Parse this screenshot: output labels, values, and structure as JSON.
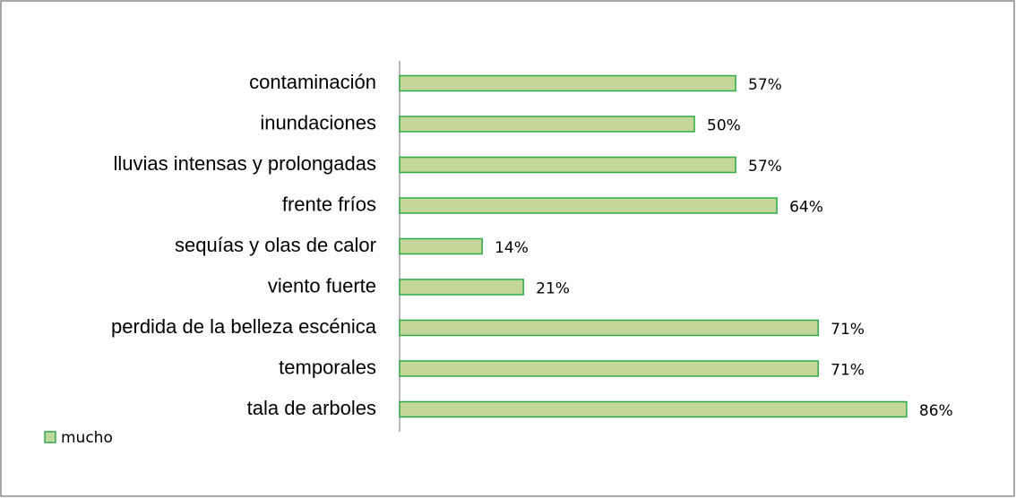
{
  "chart_data": {
    "type": "bar",
    "orientation": "horizontal",
    "categories": [
      "contaminación",
      "inundaciones",
      "lluvias intensas y prolongadas ",
      "frente fríos",
      "sequías y olas de calor",
      "viento fuerte",
      "perdida de la belleza escénica",
      "temporales",
      "tala de arboles"
    ],
    "series": [
      {
        "name": "mucho",
        "color": "#c4d79b",
        "edge_color": "#2eaa48",
        "values": [
          57,
          50,
          57,
          64,
          14,
          21,
          71,
          71,
          86
        ],
        "value_labels": [
          "57%",
          "50%",
          "57%",
          "64%",
          "14%",
          "21%",
          "71%",
          "71%",
          "86%"
        ]
      }
    ],
    "xlim": [
      0,
      100
    ],
    "legend": "bottom-left"
  }
}
